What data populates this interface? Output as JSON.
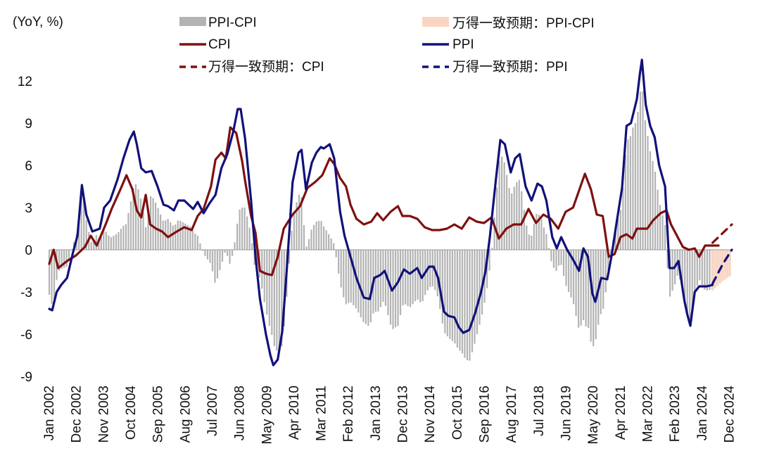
{
  "chart_data": {
    "type": "bar+line",
    "unit_label": "(YoY, %)",
    "ylim": [
      -9,
      14
    ],
    "yticks": [
      {
        "value": 12,
        "label": "12",
        "color": "#111111"
      },
      {
        "value": 9,
        "label": "9",
        "color": "#111111"
      },
      {
        "value": 6,
        "label": "6",
        "color": "#111111"
      },
      {
        "value": 3,
        "label": "3",
        "color": "#111111"
      },
      {
        "value": 0,
        "label": "0",
        "color": "#111111"
      },
      {
        "value": -3,
        "label": "-3",
        "color": "#e8101c"
      },
      {
        "value": -6,
        "label": "-6",
        "color": "#e8101c"
      },
      {
        "value": -9,
        "label": "-9",
        "color": "#e8101c"
      }
    ],
    "x_range": [
      2002.0,
      2025.0
    ],
    "xticks": [
      {
        "t": 2002.0,
        "label": "Jan 2002"
      },
      {
        "t": 2002.917,
        "label": "Dec 2002"
      },
      {
        "t": 2003.833,
        "label": "Nov 2003"
      },
      {
        "t": 2004.75,
        "label": "Oct 2004"
      },
      {
        "t": 2005.667,
        "label": "Sep 2005"
      },
      {
        "t": 2006.583,
        "label": "Aug 2006"
      },
      {
        "t": 2007.5,
        "label": "Jul 2007"
      },
      {
        "t": 2008.417,
        "label": "Jun 2008"
      },
      {
        "t": 2009.333,
        "label": "May 2009"
      },
      {
        "t": 2010.25,
        "label": "Apr 2010"
      },
      {
        "t": 2011.167,
        "label": "Mar 2011"
      },
      {
        "t": 2012.083,
        "label": "Feb 2012"
      },
      {
        "t": 2013.0,
        "label": "Jan 2013"
      },
      {
        "t": 2013.917,
        "label": "Dec 2013"
      },
      {
        "t": 2014.833,
        "label": "Nov 2014"
      },
      {
        "t": 2015.75,
        "label": "Oct 2015"
      },
      {
        "t": 2016.667,
        "label": "Sep 2016"
      },
      {
        "t": 2017.583,
        "label": "Aug 2017"
      },
      {
        "t": 2018.5,
        "label": "Jul 2018"
      },
      {
        "t": 2019.417,
        "label": "Jun 2019"
      },
      {
        "t": 2020.333,
        "label": "May 2020"
      },
      {
        "t": 2021.25,
        "label": "Apr 2021"
      },
      {
        "t": 2022.167,
        "label": "Mar 2022"
      },
      {
        "t": 2023.083,
        "label": "Feb 2023"
      },
      {
        "t": 2024.0,
        "label": "Jan 2024"
      },
      {
        "t": 2024.917,
        "label": "Dec 2024"
      }
    ],
    "legend": {
      "ppi_cpi": "PPI-CPI",
      "consensus_ppi_cpi": "万得一致预期：PPI-CPI",
      "cpi": "CPI",
      "ppi": "PPI",
      "consensus_cpi": "万得一致预期：CPI",
      "consensus_ppi": "万得一致预期：PPI"
    },
    "colors": {
      "ppi_cpi_bar": "#b3b3b3",
      "consensus_bar": "#f9d5c1",
      "cpi": "#7f1010",
      "ppi": "#11117a",
      "negative_tick": "#e8101c"
    },
    "series": [
      {
        "name": "CPI",
        "style": "solid",
        "points": [
          [
            2002.0,
            -1.0
          ],
          [
            2002.15,
            0.0
          ],
          [
            2002.3,
            -1.3
          ],
          [
            2002.6,
            -0.8
          ],
          [
            2002.9,
            -0.4
          ],
          [
            2003.2,
            0.2
          ],
          [
            2003.4,
            1.0
          ],
          [
            2003.6,
            0.3
          ],
          [
            2003.9,
            1.8
          ],
          [
            2004.1,
            2.9
          ],
          [
            2004.4,
            4.3
          ],
          [
            2004.6,
            5.3
          ],
          [
            2004.8,
            4.3
          ],
          [
            2004.95,
            2.8
          ],
          [
            2005.1,
            2.3
          ],
          [
            2005.25,
            3.9
          ],
          [
            2005.4,
            1.8
          ],
          [
            2005.6,
            1.5
          ],
          [
            2005.8,
            1.3
          ],
          [
            2006.0,
            0.9
          ],
          [
            2006.3,
            1.3
          ],
          [
            2006.55,
            1.6
          ],
          [
            2006.8,
            1.4
          ],
          [
            2007.0,
            2.4
          ],
          [
            2007.2,
            2.9
          ],
          [
            2007.45,
            4.5
          ],
          [
            2007.6,
            6.4
          ],
          [
            2007.8,
            6.9
          ],
          [
            2007.95,
            6.5
          ],
          [
            2008.1,
            8.7
          ],
          [
            2008.3,
            8.3
          ],
          [
            2008.5,
            6.3
          ],
          [
            2008.6,
            4.9
          ],
          [
            2008.8,
            2.4
          ],
          [
            2008.95,
            1.2
          ],
          [
            2009.1,
            -1.5
          ],
          [
            2009.3,
            -1.7
          ],
          [
            2009.5,
            -1.8
          ],
          [
            2009.7,
            -0.5
          ],
          [
            2009.9,
            1.5
          ],
          [
            2010.2,
            2.5
          ],
          [
            2010.45,
            3.1
          ],
          [
            2010.7,
            4.4
          ],
          [
            2010.95,
            4.8
          ],
          [
            2011.2,
            5.3
          ],
          [
            2011.45,
            6.5
          ],
          [
            2011.6,
            6.1
          ],
          [
            2011.8,
            5.1
          ],
          [
            2012.0,
            4.5
          ],
          [
            2012.15,
            3.2
          ],
          [
            2012.35,
            2.2
          ],
          [
            2012.6,
            1.8
          ],
          [
            2012.85,
            2.0
          ],
          [
            2013.05,
            2.6
          ],
          [
            2013.25,
            2.1
          ],
          [
            2013.5,
            2.7
          ],
          [
            2013.75,
            3.1
          ],
          [
            2013.9,
            2.4
          ],
          [
            2014.15,
            2.4
          ],
          [
            2014.4,
            2.2
          ],
          [
            2014.65,
            1.6
          ],
          [
            2014.9,
            1.4
          ],
          [
            2015.15,
            1.4
          ],
          [
            2015.4,
            1.5
          ],
          [
            2015.65,
            1.8
          ],
          [
            2015.9,
            1.5
          ],
          [
            2016.15,
            2.3
          ],
          [
            2016.4,
            2.0
          ],
          [
            2016.65,
            1.9
          ],
          [
            2016.9,
            2.3
          ],
          [
            2017.15,
            0.8
          ],
          [
            2017.4,
            1.5
          ],
          [
            2017.65,
            1.8
          ],
          [
            2017.9,
            1.8
          ],
          [
            2018.15,
            2.9
          ],
          [
            2018.4,
            1.9
          ],
          [
            2018.65,
            2.5
          ],
          [
            2018.9,
            2.2
          ],
          [
            2019.15,
            1.5
          ],
          [
            2019.4,
            2.7
          ],
          [
            2019.65,
            3.0
          ],
          [
            2019.9,
            4.5
          ],
          [
            2020.05,
            5.4
          ],
          [
            2020.25,
            4.3
          ],
          [
            2020.45,
            2.5
          ],
          [
            2020.65,
            2.4
          ],
          [
            2020.85,
            -0.5
          ],
          [
            2021.05,
            -0.3
          ],
          [
            2021.25,
            0.9
          ],
          [
            2021.45,
            1.1
          ],
          [
            2021.65,
            0.8
          ],
          [
            2021.8,
            1.5
          ],
          [
            2021.95,
            1.5
          ],
          [
            2022.15,
            1.5
          ],
          [
            2022.35,
            2.1
          ],
          [
            2022.6,
            2.6
          ],
          [
            2022.8,
            2.8
          ],
          [
            2022.95,
            1.8
          ],
          [
            2023.15,
            1.0
          ],
          [
            2023.35,
            0.2
          ],
          [
            2023.55,
            0.0
          ],
          [
            2023.75,
            0.1
          ],
          [
            2023.9,
            -0.5
          ],
          [
            2024.1,
            0.3
          ],
          [
            2024.35,
            0.3
          ],
          [
            2024.55,
            0.3
          ]
        ]
      },
      {
        "name": "PPI",
        "style": "solid",
        "points": [
          [
            2002.0,
            -4.2
          ],
          [
            2002.1,
            -4.3
          ],
          [
            2002.25,
            -3.0
          ],
          [
            2002.4,
            -2.5
          ],
          [
            2002.6,
            -2.0
          ],
          [
            2002.8,
            -0.2
          ],
          [
            2002.95,
            1.0
          ],
          [
            2003.1,
            4.6
          ],
          [
            2003.25,
            2.5
          ],
          [
            2003.45,
            1.3
          ],
          [
            2003.7,
            1.5
          ],
          [
            2003.85,
            3.0
          ],
          [
            2004.05,
            3.5
          ],
          [
            2004.3,
            5.0
          ],
          [
            2004.5,
            6.5
          ],
          [
            2004.7,
            7.8
          ],
          [
            2004.85,
            8.4
          ],
          [
            2004.95,
            7.5
          ],
          [
            2005.1,
            5.8
          ],
          [
            2005.25,
            5.5
          ],
          [
            2005.45,
            5.6
          ],
          [
            2005.65,
            4.5
          ],
          [
            2005.85,
            3.2
          ],
          [
            2006.0,
            3.1
          ],
          [
            2006.2,
            2.8
          ],
          [
            2006.35,
            3.5
          ],
          [
            2006.55,
            3.5
          ],
          [
            2006.7,
            3.2
          ],
          [
            2006.85,
            2.9
          ],
          [
            2007.0,
            3.4
          ],
          [
            2007.2,
            2.6
          ],
          [
            2007.4,
            3.3
          ],
          [
            2007.6,
            3.9
          ],
          [
            2007.8,
            5.8
          ],
          [
            2008.0,
            6.8
          ],
          [
            2008.2,
            8.4
          ],
          [
            2008.35,
            10.0
          ],
          [
            2008.45,
            10.0
          ],
          [
            2008.6,
            7.9
          ],
          [
            2008.8,
            3.5
          ],
          [
            2008.95,
            -0.5
          ],
          [
            2009.1,
            -3.5
          ],
          [
            2009.3,
            -6.0
          ],
          [
            2009.45,
            -7.5
          ],
          [
            2009.55,
            -8.2
          ],
          [
            2009.7,
            -7.8
          ],
          [
            2009.85,
            -5.8
          ],
          [
            2010.0,
            -1.5
          ],
          [
            2010.2,
            4.8
          ],
          [
            2010.4,
            6.9
          ],
          [
            2010.5,
            7.1
          ],
          [
            2010.65,
            4.3
          ],
          [
            2010.85,
            6.2
          ],
          [
            2011.0,
            6.9
          ],
          [
            2011.15,
            7.3
          ],
          [
            2011.25,
            7.2
          ],
          [
            2011.45,
            7.5
          ],
          [
            2011.6,
            6.5
          ],
          [
            2011.8,
            2.7
          ],
          [
            2011.95,
            1.0
          ],
          [
            2012.15,
            -0.5
          ],
          [
            2012.35,
            -2.0
          ],
          [
            2012.6,
            -3.4
          ],
          [
            2012.8,
            -3.5
          ],
          [
            2012.95,
            -2.0
          ],
          [
            2013.15,
            -1.8
          ],
          [
            2013.3,
            -1.5
          ],
          [
            2013.55,
            -2.9
          ],
          [
            2013.75,
            -2.3
          ],
          [
            2013.95,
            -1.4
          ],
          [
            2014.15,
            -1.7
          ],
          [
            2014.4,
            -1.3
          ],
          [
            2014.55,
            -2.0
          ],
          [
            2014.8,
            -1.2
          ],
          [
            2014.95,
            -1.2
          ],
          [
            2015.1,
            -2.0
          ],
          [
            2015.3,
            -4.4
          ],
          [
            2015.45,
            -4.7
          ],
          [
            2015.65,
            -4.8
          ],
          [
            2015.8,
            -5.5
          ],
          [
            2015.95,
            -5.9
          ],
          [
            2016.15,
            -5.7
          ],
          [
            2016.35,
            -4.5
          ],
          [
            2016.55,
            -3.0
          ],
          [
            2016.7,
            -1.5
          ],
          [
            2016.85,
            1.0
          ],
          [
            2017.05,
            5.0
          ],
          [
            2017.2,
            7.8
          ],
          [
            2017.35,
            7.5
          ],
          [
            2017.55,
            5.5
          ],
          [
            2017.7,
            6.5
          ],
          [
            2017.85,
            6.8
          ],
          [
            2018.05,
            4.5
          ],
          [
            2018.25,
            3.5
          ],
          [
            2018.45,
            4.7
          ],
          [
            2018.6,
            4.5
          ],
          [
            2018.75,
            3.5
          ],
          [
            2018.95,
            0.9
          ],
          [
            2019.1,
            0.1
          ],
          [
            2019.25,
            0.9
          ],
          [
            2019.45,
            0.0
          ],
          [
            2019.65,
            -0.7
          ],
          [
            2019.85,
            -1.5
          ],
          [
            2020.0,
            0.1
          ],
          [
            2020.15,
            -0.5
          ],
          [
            2020.3,
            -3.1
          ],
          [
            2020.4,
            -3.7
          ],
          [
            2020.6,
            -2.0
          ],
          [
            2020.8,
            -2.1
          ],
          [
            2020.95,
            -0.4
          ],
          [
            2021.1,
            1.7
          ],
          [
            2021.3,
            4.4
          ],
          [
            2021.45,
            8.8
          ],
          [
            2021.6,
            9.0
          ],
          [
            2021.8,
            10.7
          ],
          [
            2021.9,
            12.5
          ],
          [
            2021.97,
            13.5
          ],
          [
            2022.1,
            10.3
          ],
          [
            2022.25,
            8.8
          ],
          [
            2022.4,
            8.0
          ],
          [
            2022.55,
            6.0
          ],
          [
            2022.75,
            4.5
          ],
          [
            2022.9,
            -1.3
          ],
          [
            2023.05,
            -1.3
          ],
          [
            2023.2,
            -0.8
          ],
          [
            2023.4,
            -3.6
          ],
          [
            2023.5,
            -4.6
          ],
          [
            2023.6,
            -5.4
          ],
          [
            2023.75,
            -3.0
          ],
          [
            2023.9,
            -2.6
          ],
          [
            2024.15,
            -2.6
          ],
          [
            2024.35,
            -2.5
          ]
        ]
      },
      {
        "name": "万得一致预期：CPI",
        "style": "dashed",
        "points": [
          [
            2024.35,
            0.5
          ],
          [
            2024.7,
            1.2
          ],
          [
            2025.0,
            1.8
          ]
        ]
      },
      {
        "name": "万得一致预期：PPI",
        "style": "dashed",
        "points": [
          [
            2024.35,
            -2.4
          ],
          [
            2024.7,
            -1.0
          ],
          [
            2025.0,
            0.0
          ]
        ]
      }
    ],
    "annotations_note": "PPI-CPI bars are the monthly spread derived from the PPI and CPI series; consensus bars cover 2024.35-2025.0"
  }
}
